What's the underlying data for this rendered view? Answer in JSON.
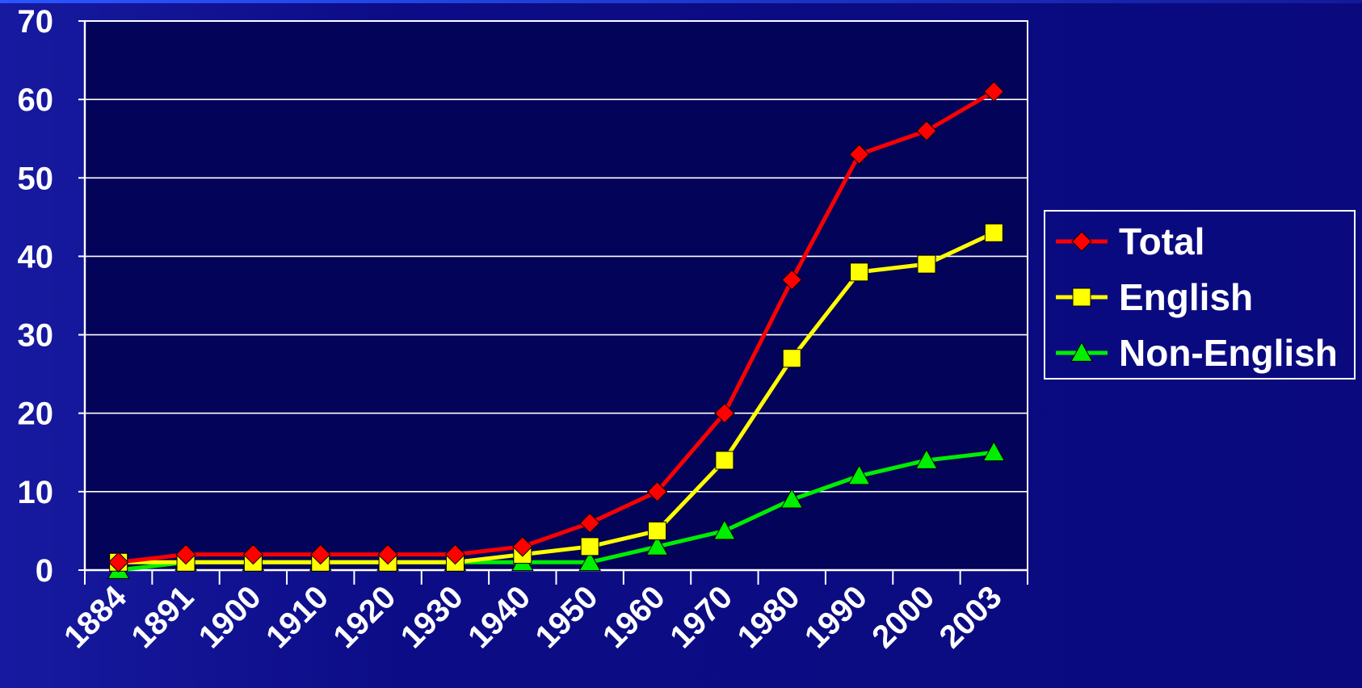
{
  "colors": {
    "background": "#0a0a7e",
    "plot_background": "#03035a",
    "grid": "#ffffff",
    "text": "#ffffff"
  },
  "chart_data": {
    "type": "line",
    "title": "",
    "xlabel": "",
    "ylabel": "",
    "categories": [
      "1884",
      "1891",
      "1900",
      "1910",
      "1920",
      "1930",
      "1940",
      "1950",
      "1960",
      "1970",
      "1980",
      "1990",
      "2000",
      "2003"
    ],
    "ylim": [
      0,
      70
    ],
    "yticks": [
      0,
      10,
      20,
      30,
      40,
      50,
      60,
      70
    ],
    "grid": true,
    "legend_position": "right",
    "series": [
      {
        "name": "Total",
        "color": "#ff0000",
        "marker": "diamond",
        "values": [
          1,
          2,
          2,
          2,
          2,
          2,
          3,
          6,
          10,
          20,
          37,
          53,
          56,
          61
        ]
      },
      {
        "name": "English",
        "color": "#ffff00",
        "marker": "square",
        "values": [
          1,
          1,
          1,
          1,
          1,
          1,
          2,
          3,
          5,
          14,
          27,
          38,
          39,
          43
        ]
      },
      {
        "name": "Non-English",
        "color": "#00ee00",
        "marker": "triangle",
        "values": [
          0,
          1,
          1,
          1,
          1,
          1,
          1,
          1,
          3,
          5,
          9,
          12,
          14,
          15
        ]
      }
    ]
  }
}
